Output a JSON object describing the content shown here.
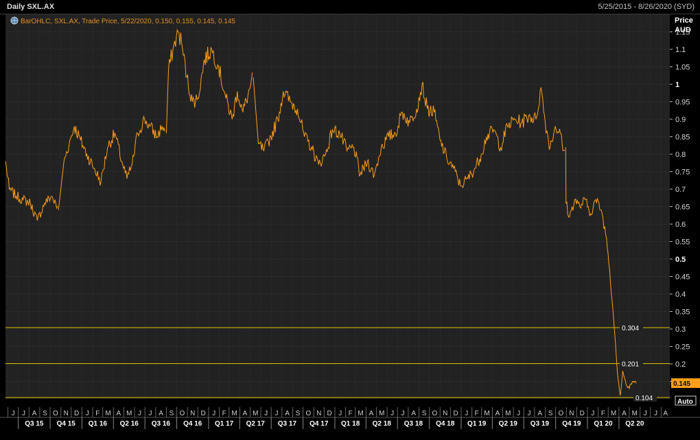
{
  "window": {
    "title": "Daily SXL.AX",
    "date_range": "5/25/2015 - 8/26/2020 (SYD)"
  },
  "legend": {
    "icon": "globe-icon",
    "text": "BarOHLC, SXL.AX, Trade Price, 5/22/2020, 0.150, 0.155, 0.145, 0.145"
  },
  "axis": {
    "price_label": "Price",
    "currency_label": "AUD",
    "auto_button": "Auto"
  },
  "last_price": "0.145",
  "colors": {
    "series": "#ff9f1a",
    "hlines": "#d9c200",
    "last_badge": "#ff9f1a",
    "grid": "#404040",
    "background": "#222222"
  },
  "chart_data": {
    "type": "line",
    "title": "Daily SXL.AX",
    "xlabel": "",
    "ylabel": "Price AUD",
    "ylim": [
      0.1,
      1.2
    ],
    "y_ticks": [
      "0.15",
      "0.2",
      "0.25",
      "0.3",
      "0.35",
      "0.4",
      "0.45",
      "0.5",
      "0.55",
      "0.6",
      "0.65",
      "0.7",
      "0.75",
      "0.8",
      "0.85",
      "0.9",
      "0.95",
      "1",
      "1.05",
      "1.1",
      "1.15"
    ],
    "y_bold_ticks": [
      "0.5",
      "1"
    ],
    "months": [
      "J",
      "J",
      "A",
      "S",
      "O",
      "N",
      "D",
      "J",
      "F",
      "M",
      "A",
      "M",
      "J",
      "J",
      "A",
      "S",
      "O",
      "N",
      "D",
      "J",
      "F",
      "M",
      "A",
      "M",
      "J",
      "J",
      "A",
      "S",
      "O",
      "N",
      "D",
      "J",
      "F",
      "M",
      "A",
      "M",
      "J",
      "J",
      "A",
      "S",
      "O",
      "N",
      "D",
      "J",
      "F",
      "M",
      "A",
      "M",
      "J",
      "J",
      "A",
      "S",
      "O",
      "N",
      "D",
      "J",
      "F",
      "M",
      "A",
      "M",
      "J",
      "J",
      "A"
    ],
    "quarters": [
      "Q3 15",
      "Q4 15",
      "Q1 16",
      "Q2 16",
      "Q3 16",
      "Q4 16",
      "Q1 17",
      "Q2 17",
      "Q3 17",
      "Q4 17",
      "Q1 18",
      "Q2 18",
      "Q3 18",
      "Q4 18",
      "Q1 19",
      "Q2 19",
      "Q3 19",
      "Q4 19",
      "Q1 20",
      "Q2 20"
    ],
    "horizontal_lines": [
      {
        "value": 0.304,
        "label": "0.304"
      },
      {
        "value": 0.201,
        "label": "0.201"
      },
      {
        "value": 0.104,
        "label": "0.104"
      }
    ],
    "series": [
      {
        "points": [
          [
            "2015-05-25",
            0.78
          ],
          [
            "2015-06-05",
            0.7
          ],
          [
            "2015-06-25",
            0.68
          ],
          [
            "2015-07-15",
            0.67
          ],
          [
            "2015-08-05",
            0.66
          ],
          [
            "2015-08-25",
            0.61
          ],
          [
            "2015-09-15",
            0.66
          ],
          [
            "2015-10-05",
            0.68
          ],
          [
            "2015-10-25",
            0.64
          ],
          [
            "2015-11-10",
            0.78
          ],
          [
            "2015-11-25",
            0.83
          ],
          [
            "2015-12-10",
            0.88
          ],
          [
            "2015-12-28",
            0.84
          ],
          [
            "2016-01-15",
            0.8
          ],
          [
            "2016-02-05",
            0.76
          ],
          [
            "2016-02-25",
            0.72
          ],
          [
            "2016-03-15",
            0.82
          ],
          [
            "2016-04-05",
            0.86
          ],
          [
            "2016-04-25",
            0.78
          ],
          [
            "2016-05-10",
            0.73
          ],
          [
            "2016-05-25",
            0.77
          ],
          [
            "2016-06-10",
            0.86
          ],
          [
            "2016-06-30",
            0.9
          ],
          [
            "2016-07-15",
            0.88
          ],
          [
            "2016-08-05",
            0.85
          ],
          [
            "2016-08-20",
            0.88
          ],
          [
            "2016-09-01",
            0.86
          ],
          [
            "2016-09-07",
            1.04
          ],
          [
            "2016-09-20",
            1.1
          ],
          [
            "2016-10-05",
            1.15
          ],
          [
            "2016-10-15",
            1.12
          ],
          [
            "2016-10-30",
            1.02
          ],
          [
            "2016-11-15",
            0.95
          ],
          [
            "2016-12-01",
            0.96
          ],
          [
            "2016-12-20",
            1.07
          ],
          [
            "2017-01-10",
            1.1
          ],
          [
            "2017-01-30",
            1.05
          ],
          [
            "2017-02-20",
            0.96
          ],
          [
            "2017-03-10",
            0.9
          ],
          [
            "2017-03-25",
            0.98
          ],
          [
            "2017-04-10",
            0.92
          ],
          [
            "2017-04-25",
            0.97
          ],
          [
            "2017-05-10",
            1.02
          ],
          [
            "2017-05-25",
            0.83
          ],
          [
            "2017-06-10",
            0.81
          ],
          [
            "2017-06-30",
            0.85
          ],
          [
            "2017-07-20",
            0.9
          ],
          [
            "2017-08-05",
            0.98
          ],
          [
            "2017-08-25",
            0.95
          ],
          [
            "2017-09-15",
            0.93
          ],
          [
            "2017-10-05",
            0.85
          ],
          [
            "2017-10-25",
            0.82
          ],
          [
            "2017-11-15",
            0.77
          ],
          [
            "2017-12-05",
            0.8
          ],
          [
            "2017-12-25",
            0.87
          ],
          [
            "2018-01-15",
            0.86
          ],
          [
            "2018-02-05",
            0.81
          ],
          [
            "2018-02-25",
            0.82
          ],
          [
            "2018-03-15",
            0.74
          ],
          [
            "2018-04-05",
            0.78
          ],
          [
            "2018-04-25",
            0.74
          ],
          [
            "2018-05-15",
            0.82
          ],
          [
            "2018-06-05",
            0.85
          ],
          [
            "2018-06-25",
            0.86
          ],
          [
            "2018-07-15",
            0.92
          ],
          [
            "2018-08-05",
            0.89
          ],
          [
            "2018-08-25",
            0.93
          ],
          [
            "2018-09-10",
            1.0
          ],
          [
            "2018-09-25",
            0.93
          ],
          [
            "2018-10-15",
            0.92
          ],
          [
            "2018-11-01",
            0.84
          ],
          [
            "2018-11-20",
            0.79
          ],
          [
            "2018-12-10",
            0.76
          ],
          [
            "2018-12-30",
            0.71
          ],
          [
            "2019-01-20",
            0.73
          ],
          [
            "2019-02-10",
            0.76
          ],
          [
            "2019-02-28",
            0.8
          ],
          [
            "2019-03-15",
            0.85
          ],
          [
            "2019-04-05",
            0.87
          ],
          [
            "2019-04-25",
            0.82
          ],
          [
            "2019-05-15",
            0.88
          ],
          [
            "2019-06-05",
            0.9
          ],
          [
            "2019-06-25",
            0.89
          ],
          [
            "2019-07-15",
            0.91
          ],
          [
            "2019-08-05",
            0.9
          ],
          [
            "2019-08-20",
            0.99
          ],
          [
            "2019-09-01",
            0.89
          ],
          [
            "2019-09-15",
            0.82
          ],
          [
            "2019-09-30",
            0.88
          ],
          [
            "2019-10-15",
            0.86
          ],
          [
            "2019-10-22",
            0.81
          ],
          [
            "2019-10-30",
            0.82
          ],
          [
            "2019-10-31",
            0.66
          ],
          [
            "2019-11-10",
            0.62
          ],
          [
            "2019-11-25",
            0.67
          ],
          [
            "2019-12-10",
            0.65
          ],
          [
            "2019-12-25",
            0.67
          ],
          [
            "2020-01-10",
            0.63
          ],
          [
            "2020-01-25",
            0.67
          ],
          [
            "2020-02-10",
            0.64
          ],
          [
            "2020-02-25",
            0.56
          ],
          [
            "2020-03-05",
            0.47
          ],
          [
            "2020-03-15",
            0.35
          ],
          [
            "2020-03-22",
            0.26
          ],
          [
            "2020-03-28",
            0.17
          ],
          [
            "2020-04-05",
            0.11
          ],
          [
            "2020-04-12",
            0.18
          ],
          [
            "2020-04-22",
            0.14
          ],
          [
            "2020-05-01",
            0.13
          ],
          [
            "2020-05-10",
            0.15
          ],
          [
            "2020-05-22",
            0.145
          ]
        ]
      }
    ]
  }
}
